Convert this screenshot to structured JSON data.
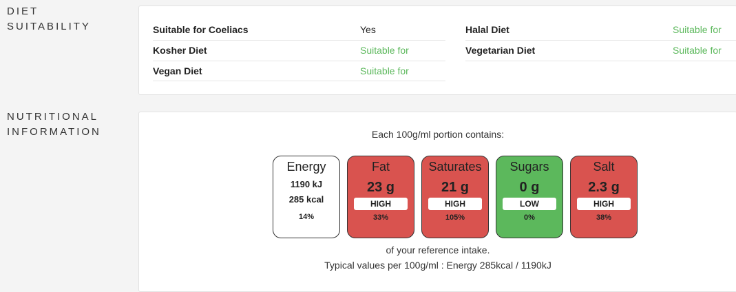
{
  "sections": {
    "diet_label": [
      "DIET",
      "SUITABILITY"
    ],
    "nutrition_label": [
      "NUTRITIONAL",
      "INFORMATION"
    ]
  },
  "diet": {
    "left": [
      {
        "key": "Suitable for Coeliacs",
        "value": "Yes"
      },
      {
        "key": "Kosher Diet",
        "value": "Suitable for"
      },
      {
        "key": "Vegan Diet",
        "value": "Suitable for"
      }
    ],
    "right": [
      {
        "key": "Halal Diet",
        "value": "Suitable for"
      },
      {
        "key": "Vegetarian Diet",
        "value": "Suitable for"
      }
    ]
  },
  "nutrition": {
    "portion_text": "Each 100g/ml portion contains:",
    "energy": {
      "name": "Energy",
      "kj": "1190 kJ",
      "kcal": "285 kcal",
      "pct": "14%"
    },
    "badges": [
      {
        "name": "Fat",
        "value": "23 g",
        "level": "HIGH",
        "pct": "33%"
      },
      {
        "name": "Saturates",
        "value": "21 g",
        "level": "HIGH",
        "pct": "105%"
      },
      {
        "name": "Sugars",
        "value": "0 g",
        "level": "LOW",
        "pct": "0%"
      },
      {
        "name": "Salt",
        "value": "2.3 g",
        "level": "HIGH",
        "pct": "38%"
      }
    ],
    "reference_text": "of your reference intake.",
    "typical_text": "Typical values per 100g/ml : Energy 285kcal / 1190kJ"
  },
  "colors": {
    "high": "#d9534f",
    "low": "#5cb85c",
    "suitable": "#5cb85c"
  }
}
